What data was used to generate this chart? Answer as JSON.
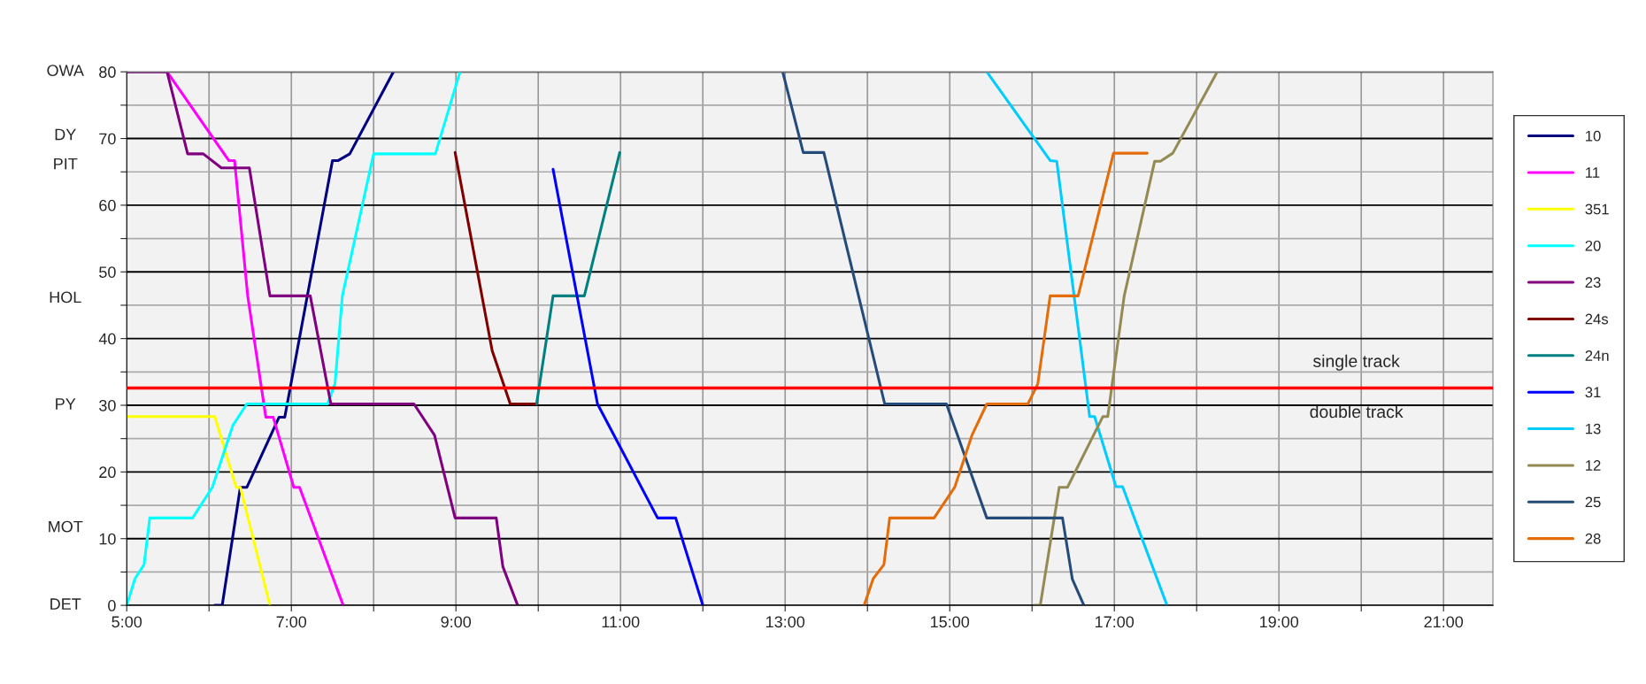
{
  "chart_data": {
    "type": "line",
    "xlim": [
      5,
      21.6
    ],
    "xticks": [
      {
        "value": 5,
        "label": "5:00"
      },
      {
        "value": 6,
        "label": null
      },
      {
        "value": 7,
        "label": "7:00"
      },
      {
        "value": 8,
        "label": null
      },
      {
        "value": 9,
        "label": "9:00"
      },
      {
        "value": 10,
        "label": null
      },
      {
        "value": 11,
        "label": "11:00"
      },
      {
        "value": 12,
        "label": null
      },
      {
        "value": 13,
        "label": "13:00"
      },
      {
        "value": 14,
        "label": null
      },
      {
        "value": 15,
        "label": "15:00"
      },
      {
        "value": 16,
        "label": null
      },
      {
        "value": 17,
        "label": "17:00"
      },
      {
        "value": 18,
        "label": null
      },
      {
        "value": 19,
        "label": "19:00"
      },
      {
        "value": 20,
        "label": null
      },
      {
        "value": 21,
        "label": "21:00"
      }
    ],
    "ylim": [
      0,
      80
    ],
    "yticks": [
      0,
      {
        "value": 5,
        "label": null
      },
      10,
      {
        "value": 15,
        "label": null
      },
      20,
      {
        "value": 25,
        "label": null
      },
      30,
      {
        "value": 35,
        "label": null
      },
      40,
      {
        "value": 45,
        "label": null
      },
      50,
      {
        "value": 55,
        "label": null
      },
      60,
      {
        "value": 65,
        "label": null
      },
      70,
      {
        "value": 75,
        "label": null
      },
      80
    ],
    "grid": true,
    "legend": "right",
    "marker": "none",
    "line_style": "solid",
    "series": [
      {
        "name": "10",
        "color": "#000080",
        "x": [
          6.07,
          6.16,
          6.38,
          6.46,
          6.85,
          6.92,
          7.5,
          7.57,
          7.71,
          8.24
        ],
        "values": [
          0,
          0,
          17.7,
          17.7,
          28.2,
          28.2,
          66.7,
          66.7,
          67.7,
          80
        ]
      },
      {
        "name": "11",
        "color": "#ff00ff",
        "x": [
          5.49,
          6.24,
          6.31,
          6.47,
          6.69,
          6.78,
          7.03,
          7.1,
          7.63
        ],
        "values": [
          80,
          66.7,
          66.7,
          46.4,
          28.2,
          28.2,
          17.7,
          17.7,
          0
        ]
      },
      {
        "name": "351",
        "color": "#ffff00",
        "x": [
          5,
          6.07,
          6.33,
          6.38,
          6.74
        ],
        "values": [
          28.3,
          28.3,
          17.7,
          17.7,
          0
        ]
      },
      {
        "name": "20",
        "color": "#00ffff",
        "x": [
          5,
          5.1,
          5.21,
          5.28,
          5.8,
          6.04,
          6.29,
          6.46,
          7.44,
          7.53,
          7.62,
          8.0,
          8.75,
          9.05
        ],
        "values": [
          0,
          4,
          6.1,
          13.1,
          13.1,
          17.7,
          27,
          30.2,
          30.2,
          33.2,
          46.4,
          67.7,
          67.7,
          80
        ]
      },
      {
        "name": "23",
        "color": "#800080",
        "x": [
          5,
          5.49,
          5.74,
          5.93,
          6.15,
          6.49,
          6.74,
          7.23,
          7.48,
          8.49,
          8.74,
          8.99,
          9.49,
          9.57,
          9.75
        ],
        "values": [
          80,
          80,
          67.7,
          67.7,
          65.6,
          65.6,
          46.4,
          46.4,
          30.2,
          30.2,
          25.5,
          13.1,
          13.1,
          5.8,
          0
        ]
      },
      {
        "name": "24s",
        "color": "#800000",
        "x": [
          8.99,
          9.44,
          9.66,
          9.98
        ],
        "values": [
          67.9,
          38.2,
          30.2,
          30.2
        ]
      },
      {
        "name": "24n",
        "color": "#008080",
        "x": [
          9.98,
          10.18,
          10.56,
          10.99
        ],
        "values": [
          30.2,
          46.4,
          46.4,
          67.9
        ]
      },
      {
        "name": "31",
        "color": "#0000ff",
        "x": [
          10.18,
          10.72,
          11.45,
          11.67,
          12.0
        ],
        "values": [
          65.4,
          30.2,
          13.1,
          13.1,
          0
        ]
      },
      {
        "name": "13",
        "color": "#00ccff",
        "x": [
          15.45,
          16.22,
          16.3,
          16.7,
          16.76,
          17.02,
          17.1,
          17.64
        ],
        "values": [
          80,
          66.7,
          66.6,
          28.3,
          28.3,
          17.8,
          17.8,
          0
        ]
      },
      {
        "name": "12",
        "color": "#948a54",
        "x": [
          16.03,
          16.1,
          16.33,
          16.43,
          16.86,
          16.92,
          17.12,
          17.49,
          17.56,
          17.71,
          18.25
        ],
        "values": [
          0,
          0,
          17.7,
          17.7,
          28.3,
          28.3,
          46.4,
          66.6,
          66.6,
          67.8,
          80
        ]
      },
      {
        "name": "25",
        "color": "#254b7a",
        "x": [
          12.97,
          13.22,
          13.47,
          14.21,
          14.96,
          15.45,
          16.37,
          16.49,
          16.63
        ],
        "values": [
          80,
          67.9,
          67.9,
          30.2,
          30.2,
          13.1,
          13.1,
          3.9,
          0
        ]
      },
      {
        "name": "28",
        "color": "#e46c0a",
        "x": [
          13.96,
          14.07,
          14.2,
          14.27,
          14.81,
          15.06,
          15.27,
          15.45,
          15.95,
          16.07,
          16.22,
          16.56,
          16.99,
          17.4
        ],
        "values": [
          0,
          4,
          6.1,
          13.1,
          13.1,
          17.7,
          25.5,
          30.2,
          30.2,
          33.2,
          46.4,
          46.4,
          67.8,
          67.8
        ]
      }
    ],
    "ref_lines": [
      {
        "axis": "y",
        "value": 32.6,
        "color": "#ff0000",
        "line_style": "solid"
      }
    ],
    "annotations": [
      "single track",
      "double track",
      "OWA",
      "DY",
      "PIT",
      "HOL",
      "PY",
      "MOT",
      "DET"
    ]
  }
}
